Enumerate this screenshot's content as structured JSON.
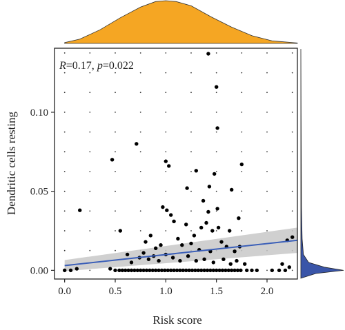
{
  "chart_data": {
    "type": "scatter",
    "xlabel": "Risk score",
    "ylabel": "Dendritic cells resting",
    "annotation": {
      "r_label": "R",
      "r_value": "=0.17, ",
      "p_label": "p",
      "p_value": "=0.022"
    },
    "xlim": [
      -0.1,
      2.3
    ],
    "ylim": [
      -0.0055,
      0.1405
    ],
    "x_ticks": [
      0.0,
      0.5,
      1.0,
      1.5,
      2.0
    ],
    "x_tick_labels": [
      "0.0",
      "0.5",
      "1.0",
      "1.5",
      "2.0"
    ],
    "y_ticks": [
      0.0,
      0.05,
      0.1
    ],
    "y_tick_labels": [
      "0.00",
      "0.05",
      "0.10"
    ],
    "grid": "dotted",
    "points": [
      [
        1.42,
        0.137
      ],
      [
        1.5,
        0.116
      ],
      [
        1.51,
        0.09
      ],
      [
        0.71,
        0.08
      ],
      [
        1.0,
        0.069
      ],
      [
        1.03,
        0.066
      ],
      [
        0.47,
        0.07
      ],
      [
        1.3,
        0.063
      ],
      [
        1.48,
        0.061
      ],
      [
        1.75,
        0.067
      ],
      [
        1.43,
        0.053
      ],
      [
        1.65,
        0.051
      ],
      [
        1.21,
        0.052
      ],
      [
        1.37,
        0.044
      ],
      [
        1.42,
        0.037
      ],
      [
        1.51,
        0.039
      ],
      [
        0.97,
        0.04
      ],
      [
        1.01,
        0.038
      ],
      [
        1.05,
        0.035
      ],
      [
        1.08,
        0.031
      ],
      [
        0.15,
        0.038
      ],
      [
        0.55,
        0.025
      ],
      [
        1.2,
        0.029
      ],
      [
        1.28,
        0.022
      ],
      [
        1.35,
        0.027
      ],
      [
        1.4,
        0.03
      ],
      [
        1.46,
        0.025
      ],
      [
        1.52,
        0.027
      ],
      [
        1.63,
        0.025
      ],
      [
        1.72,
        0.033
      ],
      [
        1.73,
        0.015
      ],
      [
        2.25,
        0.021
      ],
      [
        2.2,
        0.019
      ],
      [
        0.8,
        0.018
      ],
      [
        0.85,
        0.022
      ],
      [
        0.9,
        0.014
      ],
      [
        0.95,
        0.016
      ],
      [
        1.12,
        0.02
      ],
      [
        1.16,
        0.016
      ],
      [
        1.25,
        0.017
      ],
      [
        1.33,
        0.013
      ],
      [
        1.44,
        0.012
      ],
      [
        1.55,
        0.018
      ],
      [
        1.6,
        0.015
      ],
      [
        1.68,
        0.012
      ],
      [
        0.62,
        0.01
      ],
      [
        0.66,
        0.005
      ],
      [
        0.74,
        0.008
      ],
      [
        0.78,
        0.011
      ],
      [
        0.83,
        0.007
      ],
      [
        0.88,
        0.009
      ],
      [
        0.93,
        0.006
      ],
      [
        1.0,
        0.01
      ],
      [
        1.07,
        0.008
      ],
      [
        1.14,
        0.006
      ],
      [
        1.22,
        0.009
      ],
      [
        1.3,
        0.006
      ],
      [
        1.38,
        0.007
      ],
      [
        1.47,
        0.005
      ],
      [
        1.57,
        0.007
      ],
      [
        1.64,
        0.004
      ],
      [
        1.7,
        0.006
      ],
      [
        1.78,
        0.004
      ],
      [
        2.15,
        0.004
      ],
      [
        2.22,
        0.002
      ],
      [
        0.0,
        0.0
      ],
      [
        0.06,
        0.0
      ],
      [
        0.12,
        0.001
      ],
      [
        0.45,
        0.001
      ],
      [
        0.5,
        0.0
      ],
      [
        0.54,
        0.0
      ],
      [
        0.57,
        0.0
      ],
      [
        0.6,
        0.0
      ],
      [
        0.63,
        0.0
      ],
      [
        0.66,
        0.0
      ],
      [
        0.69,
        0.0
      ],
      [
        0.72,
        0.0
      ],
      [
        0.75,
        0.0
      ],
      [
        0.78,
        0.0
      ],
      [
        0.81,
        0.0
      ],
      [
        0.84,
        0.0
      ],
      [
        0.87,
        0.0
      ],
      [
        0.9,
        0.0
      ],
      [
        0.93,
        0.0
      ],
      [
        0.96,
        0.0
      ],
      [
        0.99,
        0.0
      ],
      [
        1.02,
        0.0
      ],
      [
        1.05,
        0.0
      ],
      [
        1.08,
        0.0
      ],
      [
        1.11,
        0.0
      ],
      [
        1.14,
        0.0
      ],
      [
        1.17,
        0.0
      ],
      [
        1.2,
        0.0
      ],
      [
        1.23,
        0.0
      ],
      [
        1.26,
        0.0
      ],
      [
        1.29,
        0.0
      ],
      [
        1.32,
        0.0
      ],
      [
        1.35,
        0.0
      ],
      [
        1.38,
        0.0
      ],
      [
        1.41,
        0.0
      ],
      [
        1.44,
        0.0
      ],
      [
        1.47,
        0.0
      ],
      [
        1.5,
        0.0
      ],
      [
        1.53,
        0.0
      ],
      [
        1.56,
        0.0
      ],
      [
        1.59,
        0.0
      ],
      [
        1.62,
        0.0
      ],
      [
        1.65,
        0.0
      ],
      [
        1.68,
        0.0
      ],
      [
        1.71,
        0.0
      ],
      [
        1.74,
        0.0
      ],
      [
        1.8,
        0.0
      ],
      [
        1.85,
        0.0
      ],
      [
        1.9,
        0.0
      ],
      [
        2.05,
        0.0
      ],
      [
        2.12,
        0.0
      ],
      [
        2.18,
        0.0
      ]
    ],
    "regression": {
      "x": [
        0.0,
        2.3
      ],
      "y": [
        0.003,
        0.019
      ],
      "ci_lower": [
        -0.0005,
        0.011
      ],
      "ci_upper": [
        0.0065,
        0.027
      ]
    },
    "top_density": {
      "x": [
        0.0,
        0.15,
        0.35,
        0.55,
        0.75,
        0.9,
        1.0,
        1.1,
        1.25,
        1.45,
        1.65,
        1.85,
        2.05,
        2.3
      ],
      "density": [
        0.02,
        0.1,
        0.32,
        0.6,
        0.85,
        0.98,
        1.0,
        0.98,
        0.88,
        0.62,
        0.38,
        0.18,
        0.06,
        0.01
      ]
    },
    "right_density": {
      "y": [
        -0.005,
        -0.002,
        0.0,
        0.002,
        0.005,
        0.01,
        0.02,
        0.04,
        0.07,
        0.1,
        0.14
      ],
      "density": [
        0.0,
        0.35,
        1.0,
        0.55,
        0.18,
        0.06,
        0.03,
        0.015,
        0.01,
        0.005,
        0.0
      ]
    },
    "colors": {
      "points": "#000000",
      "line": "#3b5fb8",
      "ci_band": "#c8c8c8",
      "top_density": "#f5a623",
      "right_density": "#3a55a8",
      "grid": "#333333",
      "frame": "#222222"
    }
  }
}
